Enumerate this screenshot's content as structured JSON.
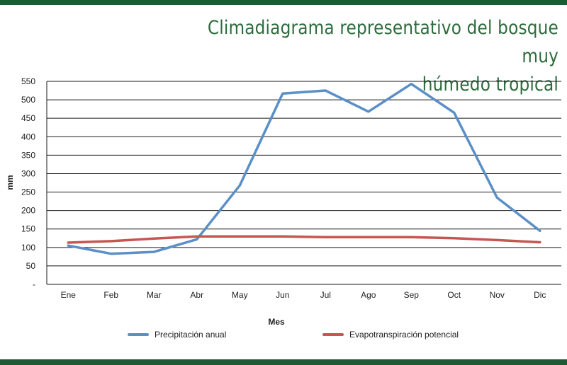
{
  "title": "Climadiagrama representativo del bosque muy\nhúmedo tropical",
  "colors": {
    "brand": "#1e5b34",
    "title": "#2e6b3d"
  },
  "chart_data": {
    "type": "line",
    "title": "Climadiagrama representativo del bosque muy húmedo tropical",
    "xlabel": "Mes",
    "ylabel": "mm",
    "categories": [
      "Ene",
      "Feb",
      "Mar",
      "Abr",
      "May",
      "Jun",
      "Jul",
      "Ago",
      "Sep",
      "Oct",
      "Nov",
      "Dic"
    ],
    "yticks": [
      "-",
      "50",
      "100",
      "150",
      "200",
      "250",
      "300",
      "350",
      "400",
      "450",
      "500",
      "550"
    ],
    "ylim": [
      0,
      550
    ],
    "grid": true,
    "legend": "bottom",
    "series": [
      {
        "name": "Precipitación anual",
        "color": "#5b8fc7",
        "values": [
          105,
          83,
          88,
          122,
          268,
          517,
          525,
          468,
          543,
          465,
          235,
          145
        ]
      },
      {
        "name": "Evapotranspiración potencial",
        "color": "#c65651",
        "values": [
          113,
          117,
          124,
          130,
          130,
          130,
          128,
          128,
          128,
          125,
          120,
          114
        ]
      }
    ]
  }
}
